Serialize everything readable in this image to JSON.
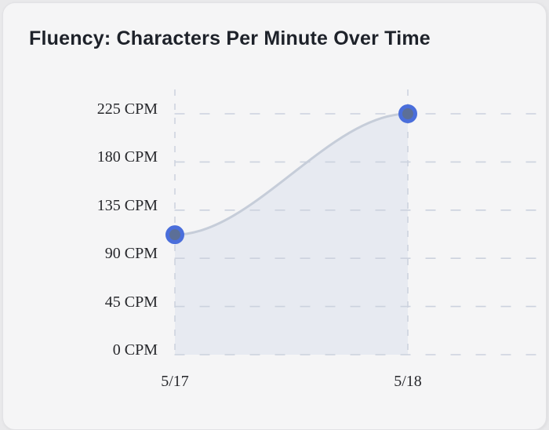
{
  "card": {
    "title": "Fluency: Characters Per Minute Over Time"
  },
  "chart_data": {
    "type": "area",
    "title": "Fluency: Characters Per Minute Over Time",
    "categories": [
      "5/17",
      "5/18"
    ],
    "series": [
      {
        "name": "Characters Per Minute",
        "values": [
          112,
          225
        ]
      }
    ],
    "ytick_values": [
      225,
      180,
      135,
      90,
      45,
      0
    ],
    "ytick_labels": [
      "225 CPM",
      "180 CPM",
      "135 CPM",
      "90 CPM",
      "45 CPM",
      "0 CPM"
    ],
    "ylim": [
      0,
      250
    ],
    "xlabel": "",
    "ylabel": "",
    "grid": "dashed",
    "legend": false,
    "colors": {
      "card_background": "#f5f5f6",
      "page_background": "#e9e9eb",
      "title_text": "#1e222a",
      "axis_text": "#26272b",
      "grid_dash": "#ccd2de",
      "area_fill": "#e7eaf1",
      "line": "#c6cdd9",
      "point_ring": "#4a6edb",
      "point_inner": "#5c6f97"
    }
  }
}
